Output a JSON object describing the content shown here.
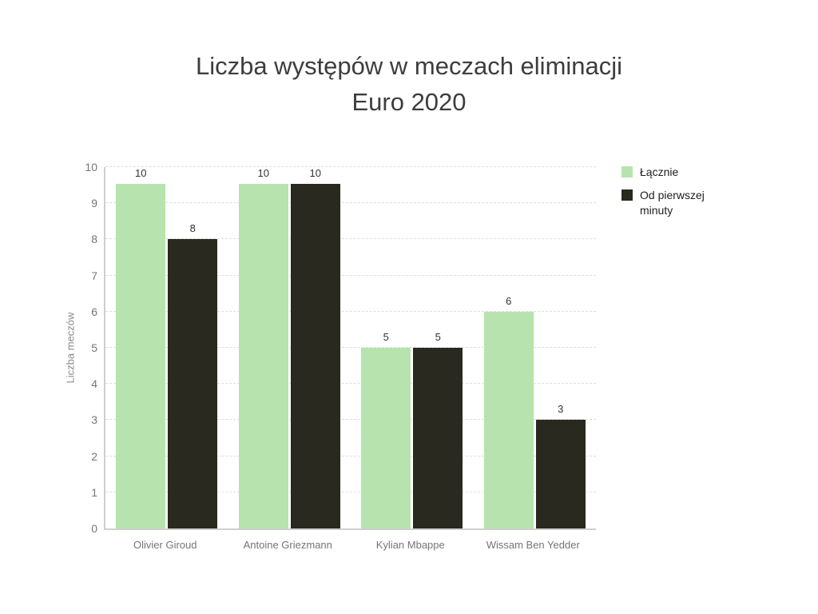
{
  "chart_data": {
    "type": "bar",
    "title": "Liczba występów w meczach eliminacji Euro 2020",
    "title_lines": [
      "Liczba występów w meczach eliminacji",
      "Euro 2020"
    ],
    "xlabel": "",
    "ylabel": "Liczba meczów",
    "categories": [
      "Olivier Giroud",
      "Antoine Griezmann",
      "Kylian Mbappe",
      "Wissam Ben Yedder"
    ],
    "series": [
      {
        "name": "Łącznie",
        "color": "#b7e4ae",
        "values": [
          10,
          10,
          5,
          6
        ]
      },
      {
        "name": "Od pierwszej minuty",
        "color": "#29291f",
        "values": [
          8,
          10,
          5,
          3
        ]
      }
    ],
    "ylim": [
      0,
      10
    ],
    "yticks": [
      0,
      1,
      2,
      3,
      4,
      5,
      6,
      7,
      8,
      9,
      10
    ],
    "grid": "horizontal-dashed",
    "legend_position": "right-top",
    "value_labels": true
  },
  "colors": {
    "axis": "#cfcfcf",
    "gridline": "#dedede",
    "title_text": "#3d3d3d",
    "tick_text": "#757575",
    "value_text": "#333333"
  }
}
